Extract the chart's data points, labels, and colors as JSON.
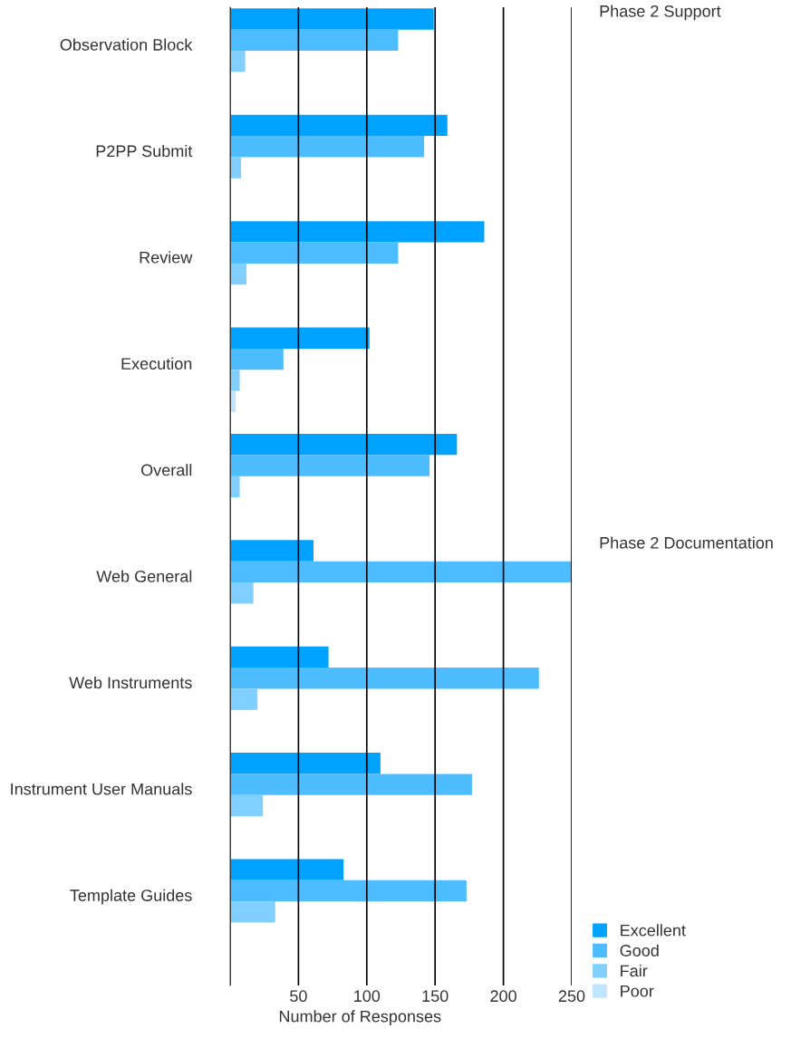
{
  "chart_data": {
    "type": "bar",
    "orientation": "horizontal",
    "xlabel": "Number of Responses",
    "categories": [
      "Observation Block",
      "P2PP Submit",
      "Review",
      "Execution",
      "Overall",
      "Web General",
      "Web Instruments",
      "Instrument User Manuals",
      "Template Guides"
    ],
    "series": [
      {
        "name": "Excellent",
        "color": "#00a2ff",
        "values": [
          149,
          159,
          186,
          102,
          166,
          61,
          72,
          110,
          83
        ]
      },
      {
        "name": "Good",
        "color": "#4dbdff",
        "values": [
          123,
          142,
          123,
          39,
          146,
          250,
          226,
          177,
          173
        ]
      },
      {
        "name": "Fair",
        "color": "#80cfff",
        "values": [
          11,
          8,
          12,
          7,
          7,
          17,
          20,
          24,
          33
        ]
      },
      {
        "name": "Poor",
        "color": "#bfe6ff",
        "values": [
          0,
          0,
          0,
          4,
          0,
          0,
          0,
          0,
          0
        ]
      }
    ],
    "annotations": [
      "Phase 2 Support",
      "Phase 2 Documentation"
    ],
    "xlim": [
      0,
      250
    ],
    "xticks": [
      {
        "value": 0,
        "label": null
      },
      50,
      100,
      150,
      200,
      250
    ],
    "grid": "x",
    "legend": "bottom right"
  }
}
